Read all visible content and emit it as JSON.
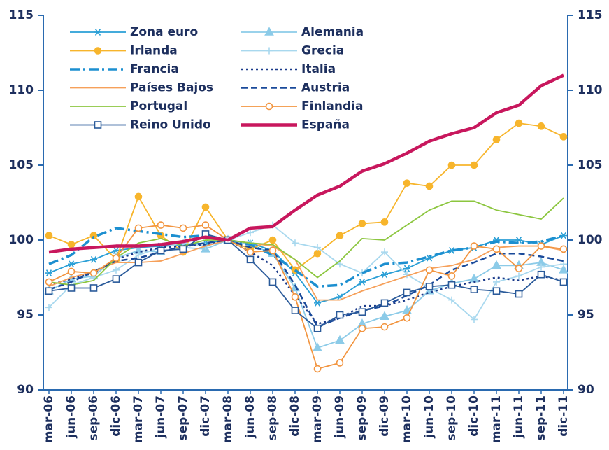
{
  "chart_data": {
    "type": "line",
    "categories": [
      "mar-06",
      "jun-06",
      "sep-06",
      "dic-06",
      "mar-07",
      "jun-07",
      "sep-07",
      "dic-07",
      "mar-08",
      "jun-08",
      "sep-08",
      "dic-08",
      "mar-09",
      "jun-09",
      "sep-09",
      "dic-09",
      "mar-10",
      "jun-10",
      "sep-10",
      "dic-10",
      "mar-11",
      "jun-11",
      "sep-11",
      "dic-11"
    ],
    "ylim": [
      90,
      115
    ],
    "yticks": [
      90,
      95,
      100,
      105,
      110,
      115
    ],
    "y2lim": [
      90,
      115
    ],
    "y2ticks": [
      90,
      95,
      100,
      105,
      110,
      115
    ],
    "legend": "upper left",
    "series": [
      {
        "name": "Zona euro",
        "color": "#2a9fd6",
        "marker": "asterisk",
        "dash": "solid",
        "values": [
          97.8,
          98.4,
          98.7,
          99.3,
          99.5,
          99.6,
          99.7,
          99.8,
          100.0,
          99.8,
          99.3,
          97.8,
          95.8,
          96.2,
          97.2,
          97.7,
          98.1,
          98.8,
          99.3,
          99.5,
          100.0,
          100.0,
          99.7,
          100.3
        ]
      },
      {
        "name": "Alemania",
        "color": "#8ccbe8",
        "marker": "triangle",
        "dash": "solid",
        "values": [
          96.6,
          97.4,
          97.6,
          98.8,
          99.3,
          99.2,
          99.5,
          99.4,
          100.0,
          99.7,
          99.1,
          96.8,
          92.8,
          93.3,
          94.4,
          94.9,
          95.3,
          96.6,
          97.1,
          97.4,
          98.3,
          98.3,
          98.5,
          98.0
        ]
      },
      {
        "name": "Irlanda",
        "color": "#f7b52c",
        "marker": "circle",
        "dash": "solid",
        "values": [
          100.3,
          99.7,
          100.3,
          98.7,
          102.9,
          100.3,
          99.2,
          102.2,
          100.0,
          99.4,
          100.0,
          98.0,
          99.1,
          100.3,
          101.1,
          101.2,
          103.8,
          103.6,
          105.0,
          105.0,
          106.7,
          107.8,
          107.6,
          106.9
        ]
      },
      {
        "name": "Grecia",
        "color": "#a8d8ee",
        "marker": "plus",
        "dash": "solid",
        "values": [
          95.5,
          97.0,
          97.5,
          98.0,
          99.0,
          99.5,
          99.8,
          99.6,
          100.0,
          100.5,
          101.0,
          99.8,
          99.5,
          98.4,
          97.8,
          99.2,
          97.7,
          96.8,
          96.0,
          94.7,
          97.2,
          97.6,
          98.2,
          98.4
        ]
      },
      {
        "name": "Francia",
        "color": "#1c8fd0",
        "marker": "none",
        "dash": "dashdot",
        "values": [
          98.4,
          99.0,
          100.2,
          100.8,
          100.6,
          100.4,
          100.2,
          100.3,
          100.0,
          99.7,
          99.0,
          98.0,
          96.9,
          97.0,
          97.8,
          98.4,
          98.5,
          98.9,
          99.3,
          99.5,
          99.9,
          99.8,
          99.9,
          100.3
        ]
      },
      {
        "name": "Italia",
        "color": "#1a3a8a",
        "marker": "none",
        "dash": "dotted",
        "values": [
          97.0,
          97.4,
          97.8,
          98.7,
          99.2,
          99.5,
          99.6,
          99.7,
          100.0,
          99.2,
          98.3,
          96.3,
          94.4,
          94.8,
          95.6,
          95.6,
          96.0,
          96.5,
          96.9,
          97.2,
          97.5,
          97.3,
          97.6,
          97.3
        ]
      },
      {
        "name": "Países Bajos",
        "color": "#f6a05a",
        "marker": "none",
        "dash": "solid",
        "values": [
          96.9,
          97.5,
          97.9,
          98.5,
          98.5,
          98.6,
          99.1,
          99.6,
          100.0,
          99.8,
          99.6,
          98.7,
          96.0,
          96.0,
          96.6,
          97.1,
          97.6,
          98.1,
          98.3,
          98.7,
          99.5,
          99.6,
          99.6,
          99.3
        ]
      },
      {
        "name": "Austria",
        "color": "#1a4a9a",
        "marker": "none",
        "dash": "dashed",
        "values": [
          96.7,
          97.2,
          97.9,
          98.6,
          98.8,
          99.2,
          99.6,
          99.8,
          100.0,
          99.5,
          99.3,
          97.0,
          94.2,
          94.8,
          95.3,
          95.6,
          96.3,
          97.0,
          98.0,
          98.5,
          99.1,
          99.1,
          98.9,
          98.6
        ]
      },
      {
        "name": "Portugal",
        "color": "#8cc63f",
        "marker": "none",
        "dash": "solid",
        "values": [
          97.2,
          97.0,
          97.3,
          98.8,
          99.8,
          100.1,
          99.6,
          100.0,
          100.0,
          99.8,
          99.7,
          98.7,
          97.5,
          98.6,
          100.1,
          100.0,
          101.0,
          102.0,
          102.6,
          102.6,
          102.0,
          101.7,
          101.4,
          102.8
        ]
      },
      {
        "name": "Finlandia",
        "color": "#f29540",
        "marker": "circle-open",
        "dash": "solid",
        "values": [
          97.2,
          97.9,
          97.8,
          98.8,
          100.8,
          101.0,
          100.8,
          101.0,
          100.0,
          99.2,
          99.3,
          96.2,
          91.4,
          91.8,
          94.1,
          94.2,
          94.8,
          98.0,
          97.6,
          99.6,
          99.4,
          98.1,
          99.6,
          99.4
        ]
      },
      {
        "name": "Reino Unido",
        "color": "#2a5a9a",
        "marker": "square-open",
        "dash": "solid",
        "values": [
          96.6,
          96.8,
          96.8,
          97.4,
          98.5,
          99.3,
          99.4,
          100.4,
          100.0,
          98.7,
          97.2,
          95.3,
          94.1,
          95.0,
          95.2,
          95.8,
          96.5,
          96.9,
          97.0,
          96.7,
          96.6,
          96.4,
          97.7,
          97.2
        ]
      },
      {
        "name": "España",
        "color": "#c8175d",
        "marker": "none",
        "dash": "thick",
        "values": [
          99.2,
          99.4,
          99.5,
          99.6,
          99.6,
          99.7,
          99.9,
          100.2,
          100.0,
          100.8,
          100.9,
          102.0,
          103.0,
          103.6,
          104.6,
          105.1,
          105.8,
          106.6,
          107.1,
          107.5,
          108.5,
          109.0,
          110.3,
          111.0
        ]
      }
    ]
  }
}
